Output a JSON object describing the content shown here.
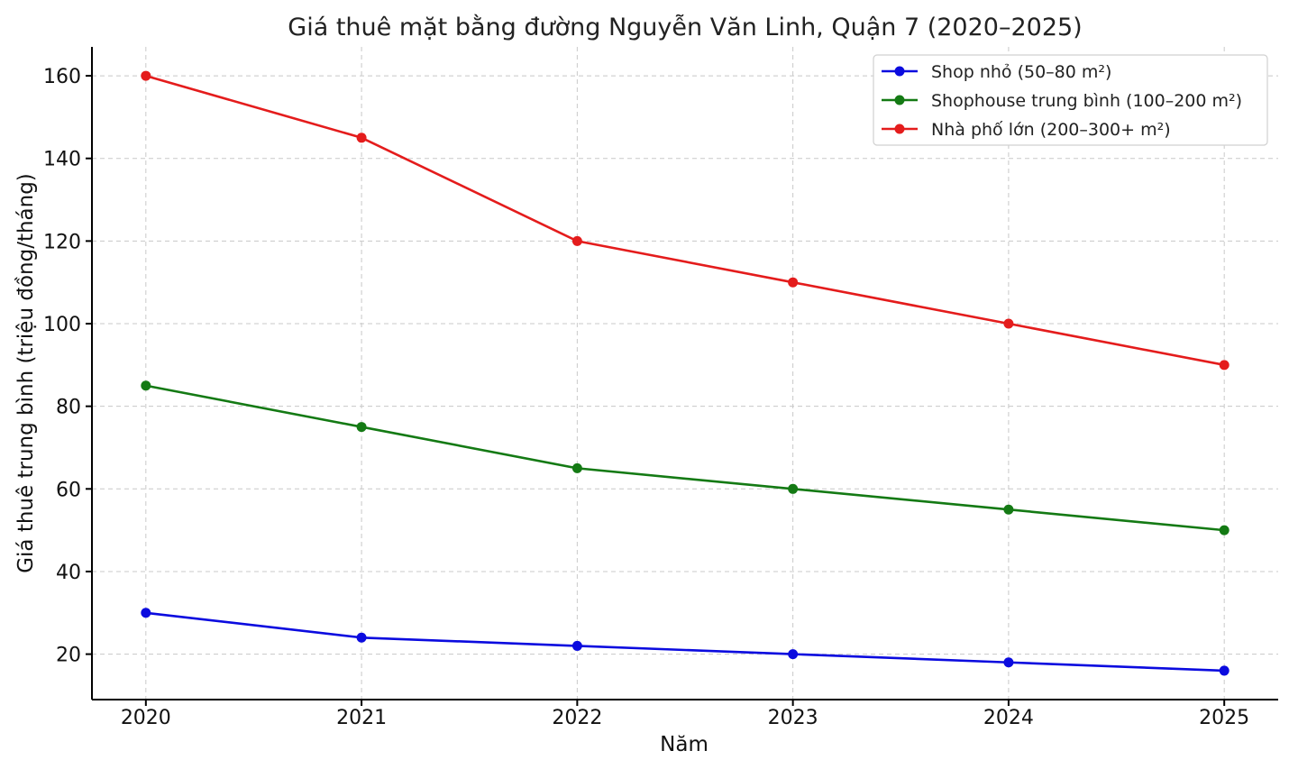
{
  "chart_data": {
    "type": "line",
    "title": "Giá thuê mặt bằng đường Nguyễn Văn Linh, Quận 7 (2020–2025)",
    "xlabel": "Năm",
    "ylabel": "Giá thuê trung bình (triệu đồng/tháng)",
    "x": [
      "2020",
      "2021",
      "2022",
      "2023",
      "2024",
      "2025"
    ],
    "yticks": [
      "20",
      "40",
      "60",
      "80",
      "100",
      "120",
      "140",
      "160"
    ],
    "ylim": [
      9,
      167
    ],
    "xlim": [
      2019.75,
      2025.25
    ],
    "grid": true,
    "legend_position": "top-right",
    "series": [
      {
        "name": "Shop nhỏ (50–80 m²)",
        "color": "#0b0bdf",
        "values": [
          30,
          24,
          22,
          20,
          18,
          16
        ]
      },
      {
        "name": "Shophouse trung bình (100–200 m²)",
        "color": "#147a14",
        "values": [
          85,
          75,
          65,
          60,
          55,
          50
        ]
      },
      {
        "name": "Nhà phố lớn (200–300+ m²)",
        "color": "#e41c1c",
        "values": [
          160,
          145,
          120,
          110,
          100,
          90
        ]
      }
    ]
  }
}
